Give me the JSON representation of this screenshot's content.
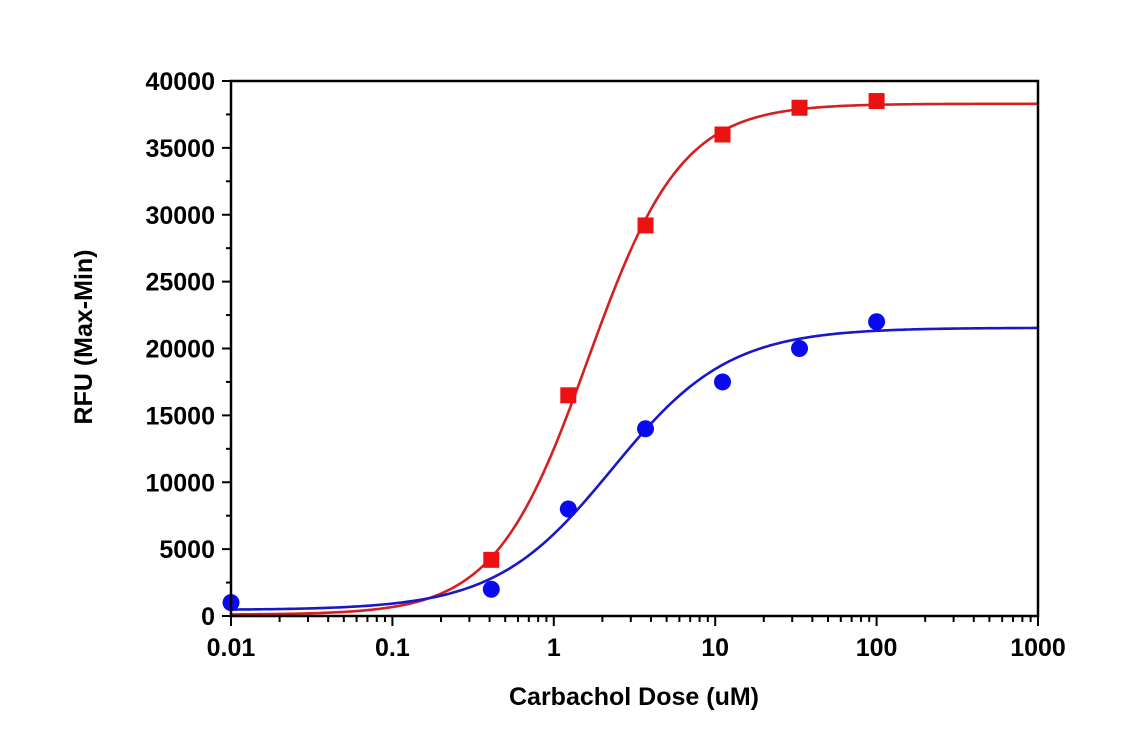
{
  "chart_data": {
    "type": "scatter",
    "title": "",
    "xlabel": "Carbachol Dose (uM)",
    "ylabel": "RFU (Max-Min)",
    "xscale": "log",
    "xlim": [
      0.01,
      1000
    ],
    "ylim": [
      0,
      40000
    ],
    "grid": false,
    "legend": "none",
    "x_tick_labels": [
      "0.01",
      "0.1",
      "1",
      "10",
      "100",
      "1000"
    ],
    "x_ticks": [
      0.01,
      0.1,
      1,
      10,
      100,
      1000
    ],
    "y_tick_labels": [
      "0",
      "5000",
      "10000",
      "15000",
      "20000",
      "25000",
      "30000",
      "35000",
      "40000"
    ],
    "y_ticks": [
      0,
      5000,
      10000,
      15000,
      20000,
      25000,
      30000,
      35000,
      40000
    ],
    "series": [
      {
        "name": "red-squares",
        "marker": "square",
        "color": "#ee1111",
        "line_color": "#d42020",
        "x": [
          0.41,
          1.23,
          3.7,
          11.1,
          33.3,
          100
        ],
        "y": [
          4200,
          16500,
          29200,
          36000,
          38000,
          38500
        ],
        "fit": {
          "model": "4PL",
          "bottom": 100,
          "top": 38300,
          "ec50": 1.63,
          "hill": 1.5
        }
      },
      {
        "name": "blue-circles",
        "marker": "circle",
        "color": "#0a0af0",
        "line_color": "#1818c8",
        "x": [
          0.01,
          0.41,
          1.23,
          3.7,
          11.1,
          33.3,
          100
        ],
        "y": [
          1000,
          2000,
          8000,
          14000,
          17500,
          20000,
          22000
        ],
        "fit": {
          "model": "4PL",
          "bottom": 450,
          "top": 21550,
          "ec50": 2.3,
          "hill": 1.2
        }
      }
    ]
  }
}
